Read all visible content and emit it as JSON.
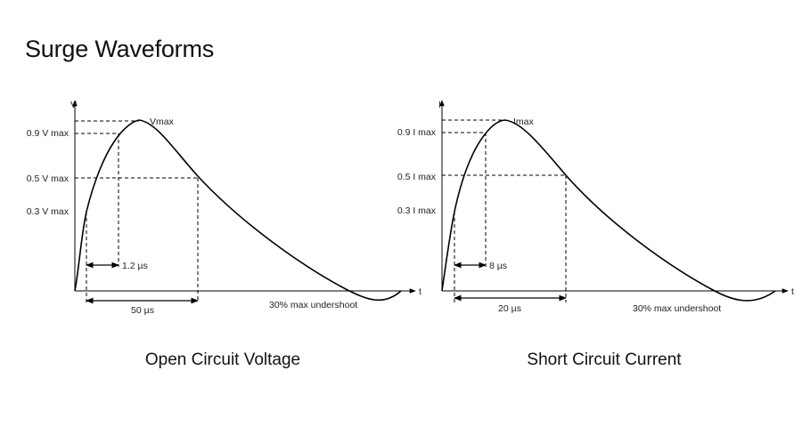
{
  "title": "Surge Waveforms",
  "left": {
    "caption": "Open Circuit Voltage",
    "y_axis": "V",
    "x_axis": "t",
    "peak": "Vmax",
    "level_09": "0.9 V max",
    "level_05": "0.5 V max",
    "level_03": "0.3 V max",
    "rise_time": "1.2 µs",
    "duration": "50 µs",
    "undershoot": "30% max undershoot"
  },
  "right": {
    "caption": "Short Circuit Current",
    "y_axis": "I",
    "x_axis": "t",
    "peak": "Imax",
    "level_09": "0.9 I max",
    "level_05": "0.5 I max",
    "level_03": "0.3 I max",
    "rise_time": "8 µs",
    "duration": "20 µs",
    "undershoot": "30% max undershoot"
  }
}
